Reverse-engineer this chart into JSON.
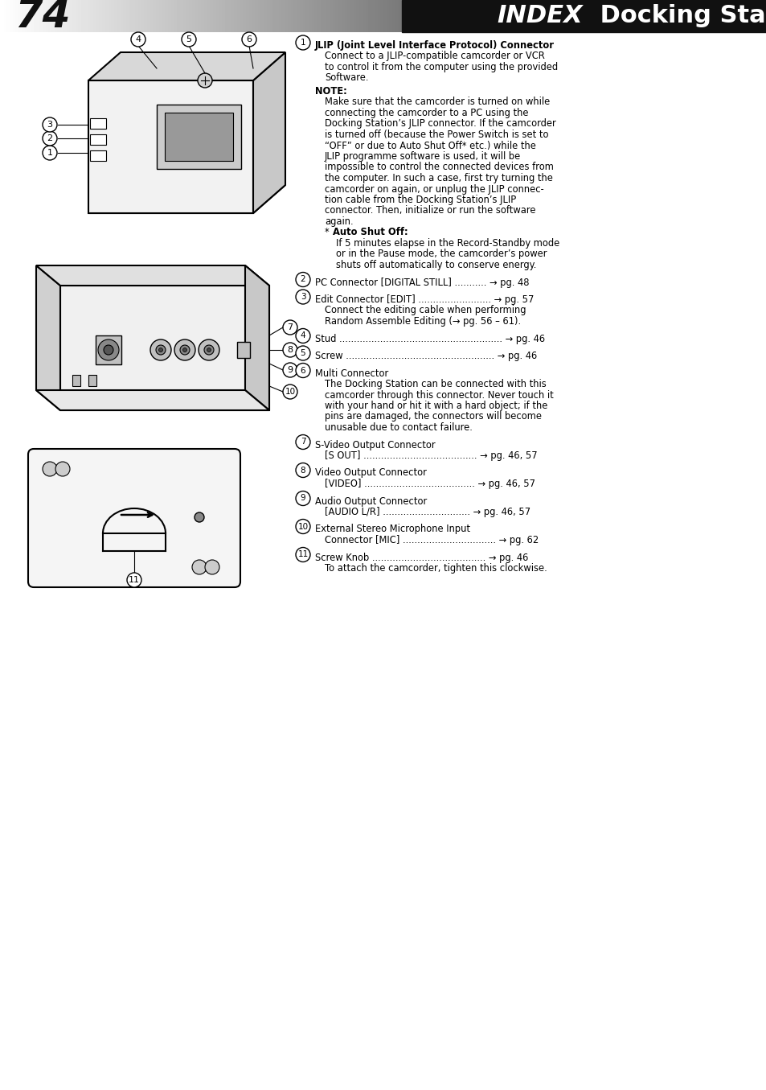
{
  "page_number": "74",
  "title_index": "INDEX",
  "title_docking": " Docking Station",
  "bg_color": "#ffffff",
  "items": [
    {
      "num": "1",
      "lines": [
        {
          "text": "JLIP (Joint Level Interface Protocol) Connector",
          "bold": true,
          "indent": 0
        },
        {
          "text": "Connect to a JLIP-compatible camcorder or VCR",
          "bold": false,
          "indent": 1
        },
        {
          "text": "to control it from the computer using the provided",
          "bold": false,
          "indent": 1
        },
        {
          "text": "Software.",
          "bold": false,
          "indent": 1
        },
        {
          "text": "NOTE:",
          "bold": true,
          "indent": 0
        },
        {
          "text": "Make sure that the camcorder is turned on while",
          "bold": false,
          "indent": 1
        },
        {
          "text": "connecting the camcorder to a PC using the",
          "bold": false,
          "indent": 1
        },
        {
          "text": "Docking Station’s JLIP connector. If the camcorder",
          "bold": false,
          "indent": 1
        },
        {
          "text": "is turned off (because the Power Switch is set to",
          "bold": false,
          "indent": 1
        },
        {
          "text": "“OFF” or due to Auto Shut Off* etc.) while the",
          "bold": false,
          "indent": 1
        },
        {
          "text": "JLIP programme software is used, it will be",
          "bold": false,
          "indent": 1
        },
        {
          "text": "impossible to control the connected devices from",
          "bold": false,
          "indent": 1
        },
        {
          "text": "the computer. In such a case, first try turning the",
          "bold": false,
          "indent": 1
        },
        {
          "text": "camcorder on again, or unplug the JLIP connec-",
          "bold": false,
          "indent": 1
        },
        {
          "text": "tion cable from the Docking Station’s JLIP",
          "bold": false,
          "indent": 1
        },
        {
          "text": "connector. Then, initialize or run the software",
          "bold": false,
          "indent": 1
        },
        {
          "text": "again.",
          "bold": false,
          "indent": 1
        },
        {
          "text": "* ",
          "bold": false,
          "indent": 1
        },
        {
          "text": "Auto Shut Off:",
          "bold": true,
          "indent": 1
        },
        {
          "text": "If 5 minutes elapse in the Record-Standby mode",
          "bold": false,
          "indent": 2
        },
        {
          "text": "or in the Pause mode, the camcorder’s power",
          "bold": false,
          "indent": 2
        },
        {
          "text": "shuts off automatically to conserve energy.",
          "bold": false,
          "indent": 2
        }
      ]
    },
    {
      "num": "2",
      "lines": [
        {
          "text": "PC Connector [DIGITAL STILL] ........... → pg. 48",
          "bold": false,
          "indent": 0
        }
      ]
    },
    {
      "num": "3",
      "lines": [
        {
          "text": "Edit Connector [EDIT] ......................... → pg. 57",
          "bold": false,
          "indent": 0
        },
        {
          "text": "Connect the editing cable when performing",
          "bold": false,
          "indent": 1
        },
        {
          "text": "Random Assemble Editing (→ pg. 56 – 61).",
          "bold": false,
          "indent": 1
        }
      ]
    },
    {
      "num": "4",
      "lines": [
        {
          "text": "Stud ........................................................ → pg. 46",
          "bold": false,
          "indent": 0
        }
      ]
    },
    {
      "num": "5",
      "lines": [
        {
          "text": "Screw ................................................... → pg. 46",
          "bold": false,
          "indent": 0
        }
      ]
    },
    {
      "num": "6",
      "lines": [
        {
          "text": "Multi Connector",
          "bold": false,
          "indent": 0
        },
        {
          "text": "The Docking Station can be connected with this",
          "bold": false,
          "indent": 1
        },
        {
          "text": "camcorder through this connector. Never touch it",
          "bold": false,
          "indent": 1
        },
        {
          "text": "with your hand or hit it with a hard object; if the",
          "bold": false,
          "indent": 1
        },
        {
          "text": "pins are damaged, the connectors will become",
          "bold": false,
          "indent": 1
        },
        {
          "text": "unusable due to contact failure.",
          "bold": false,
          "indent": 1
        }
      ]
    },
    {
      "num": "7",
      "lines": [
        {
          "text": "S-Video Output Connector",
          "bold": false,
          "indent": 0
        },
        {
          "text": "[S OUT] ....................................... → pg. 46, 57",
          "bold": false,
          "indent": 1
        }
      ]
    },
    {
      "num": "8",
      "lines": [
        {
          "text": "Video Output Connector",
          "bold": false,
          "indent": 0
        },
        {
          "text": "[VIDEO] ...................................... → pg. 46, 57",
          "bold": false,
          "indent": 1
        }
      ]
    },
    {
      "num": "9",
      "lines": [
        {
          "text": "Audio Output Connector",
          "bold": false,
          "indent": 0
        },
        {
          "text": "[AUDIO L/R] .............................. → pg. 46, 57",
          "bold": false,
          "indent": 1
        }
      ]
    },
    {
      "num": "10",
      "lines": [
        {
          "text": "External Stereo Microphone Input",
          "bold": false,
          "indent": 0
        },
        {
          "text": "Connector [MIC] ................................ → pg. 62",
          "bold": false,
          "indent": 1
        }
      ]
    },
    {
      "num": "11",
      "lines": [
        {
          "text": "Screw Knob ....................................... → pg. 46",
          "bold": false,
          "indent": 0
        },
        {
          "text": "To attach the camcorder, tighten this clockwise.",
          "bold": false,
          "indent": 1
        }
      ]
    }
  ]
}
